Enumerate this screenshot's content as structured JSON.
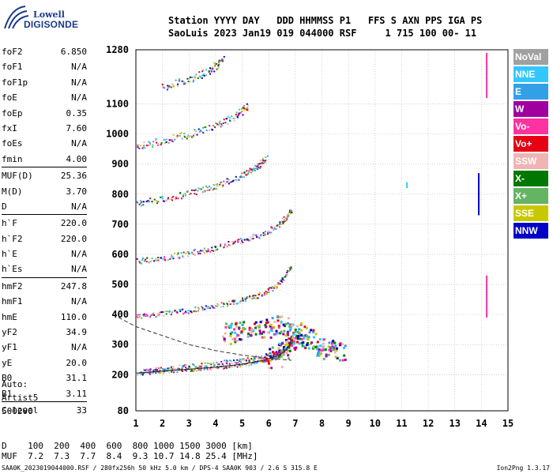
{
  "logo": {
    "line1": "Lowell",
    "line2": "DIGISONDE"
  },
  "header": {
    "line1": "Station YYYY DAY   DDD HHMMSS P1   FFS S AXN PPS IGA PS",
    "line2": "SaoLuis 2023 Jan19 019 044000 RSF     1 715 100 00- 11"
  },
  "params": [
    [
      {
        "label": "foF2",
        "value": "6.850"
      },
      {
        "label": "foF1",
        "value": "N/A"
      },
      {
        "label": "foF1p",
        "value": "N/A"
      },
      {
        "label": "foE",
        "value": "N/A"
      },
      {
        "label": "foEp",
        "value": "0.35"
      },
      {
        "label": "fxI",
        "value": "7.60"
      },
      {
        "label": "foEs",
        "value": "N/A"
      },
      {
        "label": "fmin",
        "value": "4.00"
      }
    ],
    [
      {
        "label": "MUF(D)",
        "value": "25.36"
      },
      {
        "label": "M(D)",
        "value": "3.70"
      },
      {
        "label": "D",
        "value": "N/A"
      }
    ],
    [
      {
        "label": "h`F",
        "value": "220.0"
      },
      {
        "label": "h`F2",
        "value": "220.0"
      },
      {
        "label": "h`E",
        "value": "N/A"
      },
      {
        "label": "h`Es",
        "value": "N/A"
      }
    ],
    [
      {
        "label": "hmF2",
        "value": "247.8"
      },
      {
        "label": "hmF1",
        "value": "N/A"
      },
      {
        "label": "hmE",
        "value": "110.0"
      },
      {
        "label": "yF2",
        "value": "34.9"
      },
      {
        "label": "yF1",
        "value": "N/A"
      },
      {
        "label": "yE",
        "value": "20.0"
      },
      {
        "label": "B0",
        "value": "31.1"
      },
      {
        "label": "B1",
        "value": "3.11"
      }
    ],
    [
      {
        "label": "C-level",
        "value": "33"
      }
    ]
  ],
  "autoscaling": {
    "line1": "Auto:",
    "line2": "Artist5",
    "line3": "500200"
  },
  "distance_table": {
    "line1": "D    100  200  400  600  800 1000 1500 3000 [km]",
    "line2": "MUF  7.2  7.3  7.7  8.4  9.3 10.7 14.8 25.4 [MHz]"
  },
  "footer": {
    "left": "SAA0K_2023019044000.RSF / 280fx256h 50 kHz 5.0 km / DPS-4 SAA0K 903 / 2.6 S 315.8 E",
    "right": "Ion2Png 1.3.17"
  },
  "legend": [
    {
      "label": "NoVal",
      "color": "#a0a0a0"
    },
    {
      "label": "NNE",
      "color": "#32c8ff"
    },
    {
      "label": "E",
      "color": "#32a0e6"
    },
    {
      "label": "W",
      "color": "#a000a0"
    },
    {
      "label": "Vo-",
      "color": "#ff32a0"
    },
    {
      "label": "Vo+",
      "color": "#e60014"
    },
    {
      "label": "SSW",
      "color": "#f0b4b4"
    },
    {
      "label": "X-",
      "color": "#007800"
    },
    {
      "label": "X+",
      "color": "#64b464"
    },
    {
      "label": "SSE",
      "color": "#c8c800"
    },
    {
      "label": "NNW",
      "color": "#0000c8"
    }
  ],
  "chart_data": {
    "type": "scatter",
    "xlabel": "",
    "ylabel": "",
    "xlim": [
      1,
      15
    ],
    "ylim": [
      80,
      1280
    ],
    "x_ticks": [
      1,
      2,
      3,
      4,
      5,
      6,
      7,
      8,
      9,
      10,
      11,
      12,
      13,
      14,
      15
    ],
    "y_ticks": [
      80,
      200,
      300,
      400,
      500,
      600,
      700,
      800,
      900,
      1000,
      1100,
      1280
    ],
    "grid": true,
    "traces": [
      {
        "name": "o-trace 1st hop",
        "x": [
          1.0,
          2.0,
          3.0,
          4.0,
          5.0,
          5.8,
          6.3,
          6.6,
          6.8,
          6.85
        ],
        "y": [
          205,
          212,
          218,
          225,
          235,
          248,
          262,
          278,
          300,
          330
        ]
      },
      {
        "name": "X-trace 1st hop",
        "x": [
          1.2,
          2.0,
          3.0,
          4.0,
          5.0,
          5.8,
          6.3,
          6.7
        ],
        "y": [
          213,
          222,
          230,
          240,
          250,
          262,
          275,
          290
        ]
      },
      {
        "name": "2nd hop",
        "x": [
          1.0,
          2.0,
          3.0,
          4.0,
          5.0,
          5.8,
          6.4,
          6.85
        ],
        "y": [
          395,
          405,
          415,
          430,
          450,
          470,
          505,
          560
        ]
      },
      {
        "name": "3rd hop",
        "x": [
          1.0,
          2.0,
          3.0,
          4.0,
          5.0,
          5.8,
          6.5,
          6.85
        ],
        "y": [
          578,
          590,
          605,
          625,
          650,
          670,
          710,
          750
        ]
      },
      {
        "name": "4th hop",
        "x": [
          1.0,
          2.0,
          3.0,
          4.0,
          5.0,
          5.5,
          5.9
        ],
        "y": [
          770,
          785,
          805,
          830,
          865,
          890,
          920
        ]
      },
      {
        "name": "5th hop",
        "x": [
          1.0,
          2.0,
          3.0,
          4.0,
          4.8,
          5.2
        ],
        "y": [
          960,
          980,
          1000,
          1030,
          1065,
          1095
        ]
      },
      {
        "name": "6th hop",
        "x": [
          2.0,
          3.0,
          3.8,
          4.3
        ],
        "y": [
          1160,
          1180,
          1215,
          1250
        ]
      }
    ],
    "profile": {
      "x": [
        0.35,
        1.0,
        2.0,
        3.0,
        4.0,
        5.0,
        6.0,
        6.85
      ],
      "y": [
        390,
        360,
        330,
        300,
        280,
        265,
        255,
        248
      ]
    },
    "scatter_clusters": [
      {
        "name": "F-spread",
        "x": [
          6.2,
          6.5,
          6.8,
          7.0,
          7.2,
          7.5,
          7.8,
          8.2,
          8.6
        ],
        "y": [
          260,
          290,
          320,
          340,
          330,
          320,
          300,
          290,
          285
        ]
      },
      {
        "name": "secondary",
        "x": [
          4.5,
          5.0,
          5.5,
          6.0,
          6.5
        ],
        "y": [
          340,
          345,
          350,
          360,
          370
        ]
      }
    ],
    "vertical_markers": [
      {
        "x": 14.2,
        "y": [
          1120,
          1270
        ],
        "color": "#ff32a0"
      },
      {
        "x": 14.2,
        "y": [
          390,
          530
        ],
        "color": "#ff32a0"
      },
      {
        "x": 13.9,
        "y": [
          730,
          870
        ],
        "color": "#0000c8"
      },
      {
        "x": 11.2,
        "y": [
          820,
          840
        ],
        "color": "#32c8ff"
      }
    ]
  }
}
